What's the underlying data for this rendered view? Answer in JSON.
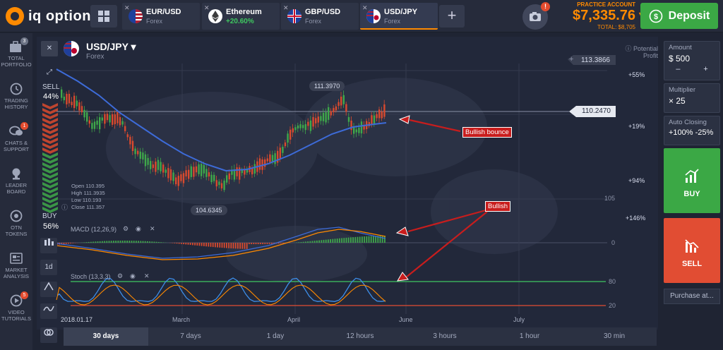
{
  "app": {
    "logo_text": "iq option"
  },
  "asset_tabs": [
    {
      "name": "EUR/USD",
      "sub": "Forex"
    },
    {
      "name": "Ethereum",
      "sub": "+20.60%"
    },
    {
      "name": "GBP/USD",
      "sub": "Forex"
    },
    {
      "name": "USD/JPY",
      "sub": "Forex"
    }
  ],
  "account": {
    "label": "PRACTICE ACCOUNT",
    "balance": "$7,335.76",
    "total": "TOTAL: $8,705",
    "notification_count": "!"
  },
  "deposit_label": "Deposit",
  "sidebar": [
    {
      "label": "TOTAL PORTFOLIO",
      "badge": "3"
    },
    {
      "label": "TRADING HISTORY",
      "badge": ""
    },
    {
      "label": "CHATS & SUPPORT",
      "badge": "1"
    },
    {
      "label": "LEADER BOARD",
      "badge": ""
    },
    {
      "label": "OTN TOKENS",
      "badge": ""
    },
    {
      "label": "MARKET ANALYSIS",
      "badge": ""
    },
    {
      "label": "VIDEO TUTORIALS",
      "badge": "5"
    }
  ],
  "symbol": {
    "name": "USD/JPY",
    "type": "Forex"
  },
  "sentiment": {
    "sell_label": "SELL",
    "sell_pct": "44%",
    "buy_label": "BUY",
    "buy_pct": "56%"
  },
  "ohlc": {
    "open": "Open  110.395",
    "high": "High   111.3935",
    "low": "Low    110.193",
    "close": "Close  111.357"
  },
  "chart_labels": {
    "high_marker": "111.3970",
    "low_marker": "104.6345",
    "current_price": "110.2470",
    "top_price": "113.3866",
    "potential_profit": "Potential Profit",
    "pp_55": "+55%",
    "pp_19": "+19%",
    "pp_94": "+94%",
    "pp_146": "+146%",
    "level_105": "105",
    "macd_label": "MACD (12,26,9)",
    "macd_zero": "0",
    "stoch_label": "Stoch (13,3,3)",
    "stoch_80": "80",
    "stoch_20": "20",
    "annot_bounce": "Bullish bounce",
    "annot_bullish": "Bullish",
    "date_start": "2018.01.17",
    "month_march": "March",
    "month_april": "April",
    "month_june": "June",
    "month_july": "July",
    "tool_1d": "1d"
  },
  "right_panel": {
    "amount_label": "Amount",
    "amount_value": "$  500",
    "minus": "–",
    "plus": "+",
    "multiplier_label": "Multiplier",
    "multiplier_value": "× 25",
    "auto_closing_label": "Auto Closing",
    "auto_closing_value": "+100%  -25%",
    "buy_label": "BUY",
    "sell_label": "SELL",
    "purchase_label": "Purchase at..."
  },
  "timeframes": [
    "30 days",
    "7 days",
    "1 day",
    "12 hours",
    "3 hours",
    "1 hour",
    "30 min"
  ],
  "colors": {
    "accent": "#ff8a00",
    "buy": "#3ba845",
    "sell": "#e14d33",
    "ma_line": "#3d6bd8",
    "annotation": "#c81d1d"
  }
}
